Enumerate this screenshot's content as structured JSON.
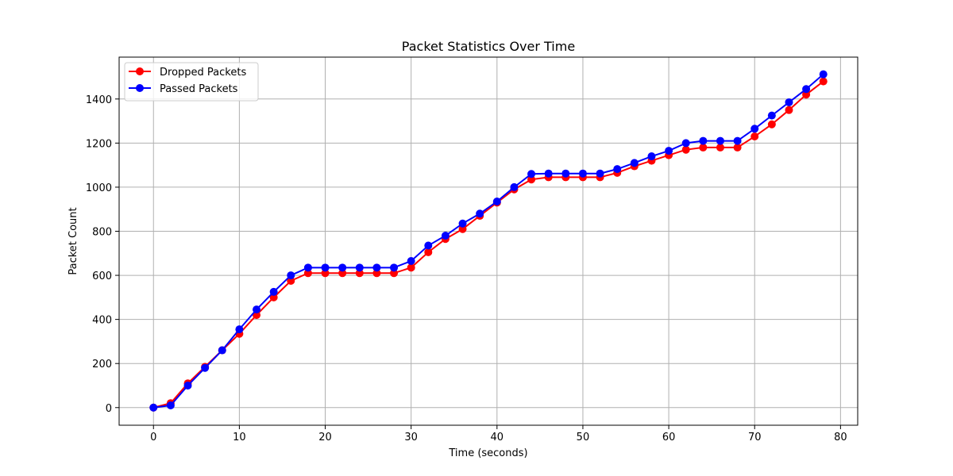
{
  "chart_data": {
    "type": "line",
    "title": "Packet Statistics Over Time",
    "xlabel": "Time (seconds)",
    "ylabel": "Packet Count",
    "xlim": [
      -4,
      82
    ],
    "ylim": [
      -80,
      1590
    ],
    "xticks": [
      0,
      10,
      20,
      30,
      40,
      50,
      60,
      70,
      80
    ],
    "yticks": [
      0,
      200,
      400,
      600,
      800,
      1000,
      1200,
      1400
    ],
    "grid": true,
    "legend": "top-left",
    "x": [
      0,
      2,
      4,
      6,
      8,
      10,
      12,
      14,
      16,
      18,
      20,
      22,
      24,
      26,
      28,
      30,
      32,
      34,
      36,
      38,
      40,
      42,
      44,
      46,
      48,
      50,
      52,
      54,
      56,
      58,
      60,
      62,
      64,
      66,
      68,
      70,
      72,
      74,
      76,
      78
    ],
    "series": [
      {
        "name": "Dropped Packets",
        "color": "#ff0000",
        "values": [
          0,
          20,
          110,
          185,
          260,
          335,
          420,
          500,
          575,
          610,
          610,
          610,
          610,
          610,
          610,
          635,
          705,
          765,
          810,
          870,
          930,
          990,
          1035,
          1045,
          1045,
          1045,
          1045,
          1065,
          1095,
          1120,
          1145,
          1170,
          1180,
          1180,
          1180,
          1230,
          1285,
          1350,
          1420,
          1480
        ]
      },
      {
        "name": "Passed Packets",
        "color": "#0000ff",
        "values": [
          0,
          10,
          100,
          180,
          260,
          355,
          445,
          525,
          600,
          635,
          635,
          635,
          635,
          635,
          635,
          665,
          735,
          780,
          835,
          880,
          935,
          1000,
          1060,
          1062,
          1062,
          1062,
          1062,
          1082,
          1110,
          1140,
          1165,
          1200,
          1210,
          1210,
          1210,
          1265,
          1325,
          1385,
          1445,
          1512
        ]
      }
    ]
  }
}
